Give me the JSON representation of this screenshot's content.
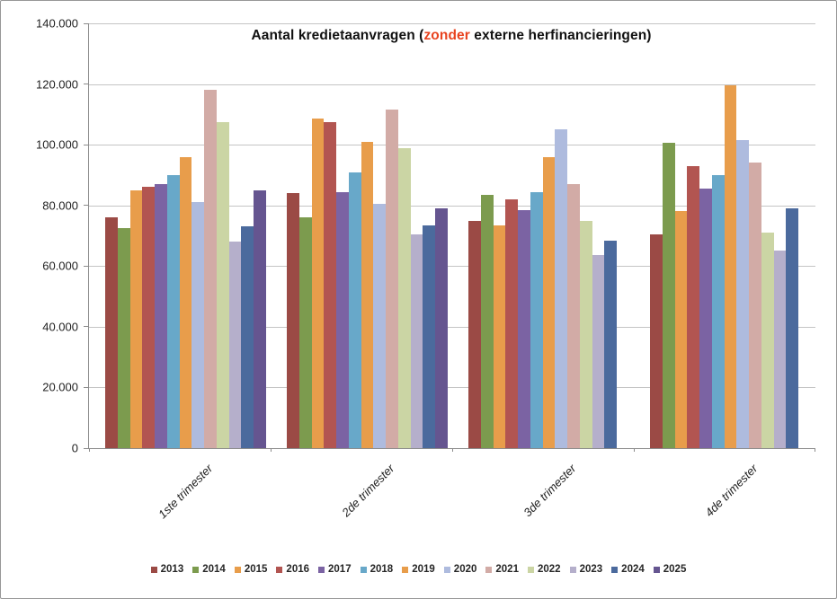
{
  "title": {
    "prefix": "Aantal kredietaanvragen (",
    "highlight": "zonder",
    "suffix": " externe herfinancieringen)",
    "highlight_color": "#e8431f"
  },
  "chart_data": {
    "type": "bar",
    "title": "Aantal kredietaanvragen (zonder externe herfinancieringen)",
    "categories": [
      "1ste trimester",
      "2de trimester",
      "3de trimester",
      "4de trimester"
    ],
    "series": [
      {
        "name": "2013",
        "color": "#9b4a45",
        "values": [
          76000,
          84000,
          75000,
          70500
        ]
      },
      {
        "name": "2014",
        "color": "#7c9b4e",
        "values": [
          72500,
          76000,
          83500,
          100500
        ]
      },
      {
        "name": "2015",
        "color": "#e89d4b",
        "values": [
          85000,
          108500,
          73500,
          78000
        ]
      },
      {
        "name": "2016",
        "color": "#b25551",
        "values": [
          86000,
          107500,
          82000,
          93000
        ]
      },
      {
        "name": "2017",
        "color": "#7b63a3",
        "values": [
          87000,
          84500,
          78500,
          85500
        ]
      },
      {
        "name": "2018",
        "color": "#68a8c9",
        "values": [
          90000,
          91000,
          84500,
          90000
        ]
      },
      {
        "name": "2019",
        "color": "#e89d4b",
        "values": [
          96000,
          101000,
          96000,
          119500
        ]
      },
      {
        "name": "2020",
        "color": "#aebbde",
        "values": [
          81000,
          80500,
          105000,
          101500
        ]
      },
      {
        "name": "2021",
        "color": "#d2aba6",
        "values": [
          118000,
          111500,
          87000,
          94000
        ]
      },
      {
        "name": "2022",
        "color": "#cbd5a4",
        "values": [
          107500,
          99000,
          75000,
          71000
        ]
      },
      {
        "name": "2023",
        "color": "#b5afcb",
        "values": [
          68000,
          70500,
          63500,
          65000
        ]
      },
      {
        "name": "2024",
        "color": "#4b6a9d",
        "values": [
          73000,
          73500,
          68500,
          79000
        ]
      },
      {
        "name": "2025",
        "color": "#655590",
        "values": [
          85000,
          79000,
          null,
          null
        ]
      }
    ],
    "ylim": [
      0,
      140000
    ],
    "ytick_step": 20000,
    "ytick_labels": [
      "0",
      "20.000",
      "40.000",
      "60.000",
      "80.000",
      "100.000",
      "120.000",
      "140.000"
    ],
    "grid": true,
    "legend_position": "bottom",
    "axis_color": "#8c8c8c",
    "gridline_color": "#c4c4c4"
  }
}
